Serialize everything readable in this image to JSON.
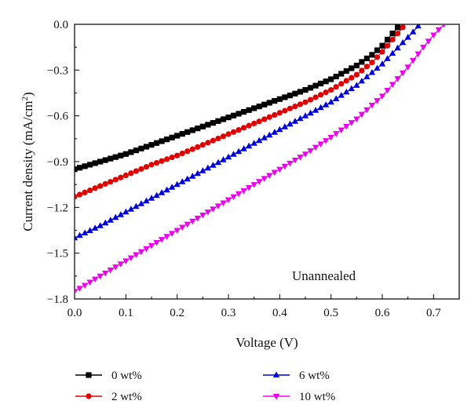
{
  "chart_data": {
    "type": "line",
    "xlabel": "Voltage (V)",
    "ylabel_main": "Current density (mA/cm",
    "ylabel_sup": "2",
    "ylabel_close": ")",
    "xlim": [
      0.0,
      0.75
    ],
    "ylim": [
      -1.8,
      0.0
    ],
    "x_ticks": [
      0.0,
      0.1,
      0.2,
      0.3,
      0.4,
      0.5,
      0.6,
      0.7
    ],
    "x_tick_labels": [
      "0.0",
      "0.1",
      "0.2",
      "0.3",
      "0.4",
      "0.5",
      "0.6",
      "0.7"
    ],
    "y_ticks": [
      0.0,
      -0.3,
      -0.6,
      -0.9,
      -1.2,
      -1.5,
      -1.8
    ],
    "y_tick_labels": [
      "0.0",
      "−0.3",
      "−0.6",
      "−0.9",
      "−1.2",
      "−1.5",
      "−1.8"
    ],
    "annotation": "Unannealed",
    "grid": false,
    "legend_position": "bottom",
    "series": [
      {
        "name": "0 wt%",
        "color": "#000000",
        "marker": "square",
        "x": [
          0.0,
          0.05,
          0.1,
          0.15,
          0.2,
          0.25,
          0.3,
          0.35,
          0.4,
          0.45,
          0.5,
          0.55,
          0.58,
          0.6,
          0.62,
          0.635
        ],
        "y": [
          -0.95,
          -0.9,
          -0.85,
          -0.79,
          -0.73,
          -0.67,
          -0.61,
          -0.55,
          -0.49,
          -0.43,
          -0.36,
          -0.27,
          -0.2,
          -0.14,
          -0.06,
          0.0
        ]
      },
      {
        "name": "2 wt%",
        "color": "#e00000",
        "marker": "circle",
        "x": [
          0.0,
          0.05,
          0.1,
          0.15,
          0.2,
          0.25,
          0.3,
          0.35,
          0.4,
          0.45,
          0.5,
          0.55,
          0.58,
          0.6,
          0.62,
          0.645
        ],
        "y": [
          -1.13,
          -1.06,
          -0.99,
          -0.92,
          -0.86,
          -0.79,
          -0.72,
          -0.65,
          -0.58,
          -0.51,
          -0.43,
          -0.33,
          -0.25,
          -0.18,
          -0.1,
          0.0
        ]
      },
      {
        "name": "6 wt%",
        "color": "#0000dd",
        "marker": "triangle-up",
        "x": [
          0.0,
          0.05,
          0.1,
          0.15,
          0.2,
          0.25,
          0.3,
          0.35,
          0.4,
          0.45,
          0.5,
          0.55,
          0.6,
          0.62,
          0.64,
          0.66,
          0.673
        ],
        "y": [
          -1.4,
          -1.32,
          -1.23,
          -1.14,
          -1.05,
          -0.96,
          -0.87,
          -0.78,
          -0.69,
          -0.6,
          -0.51,
          -0.4,
          -0.26,
          -0.19,
          -0.12,
          -0.05,
          0.0
        ]
      },
      {
        "name": "10 wt%",
        "color": "#ee00ee",
        "marker": "triangle-down",
        "x": [
          0.0,
          0.05,
          0.1,
          0.15,
          0.2,
          0.25,
          0.3,
          0.35,
          0.4,
          0.45,
          0.5,
          0.55,
          0.6,
          0.65,
          0.68,
          0.7,
          0.72
        ],
        "y": [
          -1.75,
          -1.65,
          -1.55,
          -1.45,
          -1.35,
          -1.25,
          -1.15,
          -1.05,
          -0.95,
          -0.85,
          -0.74,
          -0.62,
          -0.47,
          -0.28,
          -0.15,
          -0.07,
          0.0
        ]
      }
    ]
  }
}
